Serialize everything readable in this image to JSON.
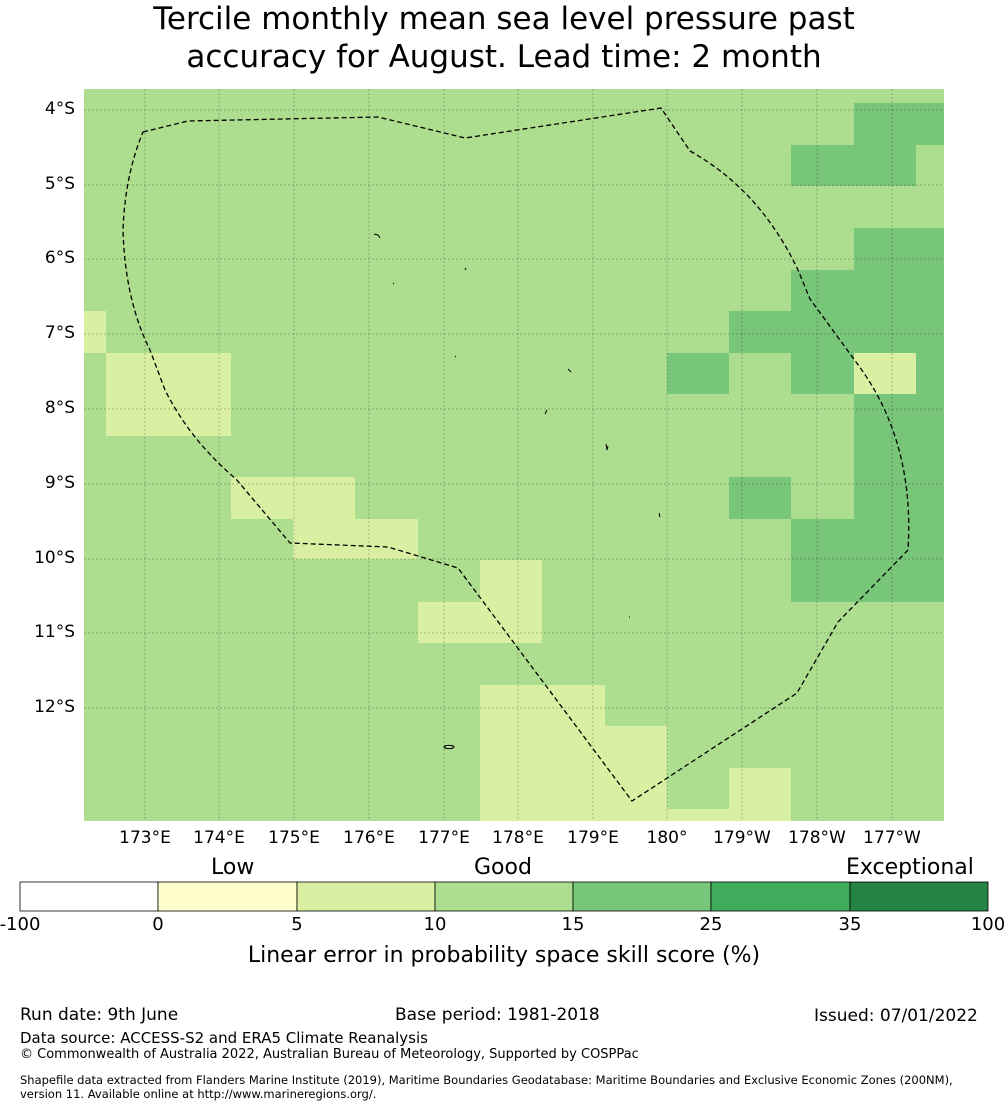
{
  "title": {
    "line1": "Tercile monthly mean sea level pressure past",
    "line2": "accuracy for August. Lead time: 2 month"
  },
  "map": {
    "lat_labels": [
      "4°S",
      "5°S",
      "6°S",
      "7°S",
      "8°S",
      "9°S",
      "10°S",
      "11°S",
      "12°S"
    ],
    "lon_labels": [
      "173°E",
      "174°E",
      "175°E",
      "176°E",
      "177°E",
      "178°E",
      "179°E",
      "180°",
      "179°W",
      "178°W",
      "177°W"
    ],
    "colors": {
      "c_0_5": "#ffffcc",
      "c_5_10": "#d9f0a3",
      "c_10_15": "#addd8e",
      "c_15_25": "#78c679",
      "c_25_35": "#41ab5d",
      "c_35_100": "#238443",
      "boundary": "#000000"
    }
  },
  "colorbar": {
    "category_labels": [
      "Low",
      "Good",
      "Exceptional"
    ],
    "ticks": [
      "-100",
      "0",
      "5",
      "10",
      "15",
      "25",
      "35",
      "100"
    ],
    "colors": [
      "#ffffff",
      "#ffffcc",
      "#d9f0a3",
      "#addd8e",
      "#78c679",
      "#41ab5d",
      "#238443"
    ],
    "title": "Linear error in probability space skill score (%)"
  },
  "footer": {
    "run_date": "Run date: 9th June",
    "base_period": "Base period: 1981-2018",
    "issued": "Issued: 07/01/2022",
    "data_source": "Data source: ACCESS-S2 and ERA5 Climate Reanalysis",
    "copyright": "© Commonwealth of Australia 2022, Australian Bureau of Meteorology, Supported by COSPPac",
    "shapefile_line1": "Shapefile data extracted from Flanders Marine Institute (2019), Maritime Boundaries Geodatabase: Maritime Boundaries and Exclusive Economic Zones (200NM),",
    "shapefile_line2": "version 11. Available online at http://www.marineregions.org/."
  }
}
